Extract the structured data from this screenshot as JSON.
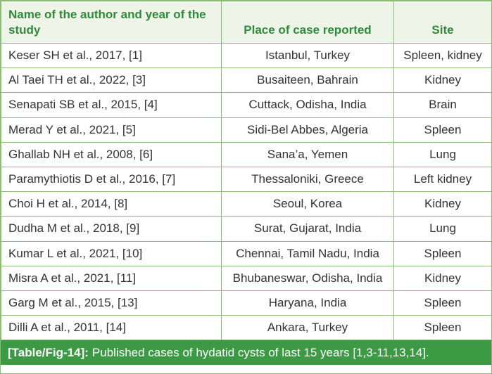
{
  "table": {
    "headers": [
      "Name of the author and year of the study",
      "Place of case reported",
      "Site"
    ],
    "rows": [
      [
        "Keser SH et al., 2017, [1]",
        "Istanbul, Turkey",
        "Spleen, kidney"
      ],
      [
        "Al Taei TH et al., 2022, [3]",
        "Busaiteen, Bahrain",
        "Kidney"
      ],
      [
        "Senapati SB et al., 2015, [4]",
        "Cuttack, Odisha, India",
        "Brain"
      ],
      [
        "Merad Y et al., 2021, [5]",
        "Sidi-Bel Abbes, Algeria",
        "Spleen"
      ],
      [
        "Ghallab NH et al., 2008, [6]",
        "Sana’a, Yemen",
        "Lung"
      ],
      [
        "Paramythiotis D et al., 2016, [7]",
        "Thessaloniki, Greece",
        "Left kidney"
      ],
      [
        "Choi H et al., 2014, [8]",
        "Seoul, Korea",
        "Kidney"
      ],
      [
        "Dudha M et al., 2018, [9]",
        "Surat, Gujarat, India",
        "Lung"
      ],
      [
        "Kumar L et al., 2021, [10]",
        "Chennai, Tamil Nadu, India",
        "Spleen"
      ],
      [
        "Misra A et al., 2021, [11]",
        "Bhubaneswar, Odisha, India",
        "Kidney"
      ],
      [
        "Garg M et al., 2015, [13]",
        "Haryana, India",
        "Spleen"
      ],
      [
        "Dilli A et al., 2011, [14]",
        "Ankara, Turkey",
        "Spleen"
      ]
    ]
  },
  "caption": {
    "label": "[Table/Fig-14]:",
    "text": "Published cases of hydatid cysts of last 15 years [1,3-11,13,14]."
  }
}
